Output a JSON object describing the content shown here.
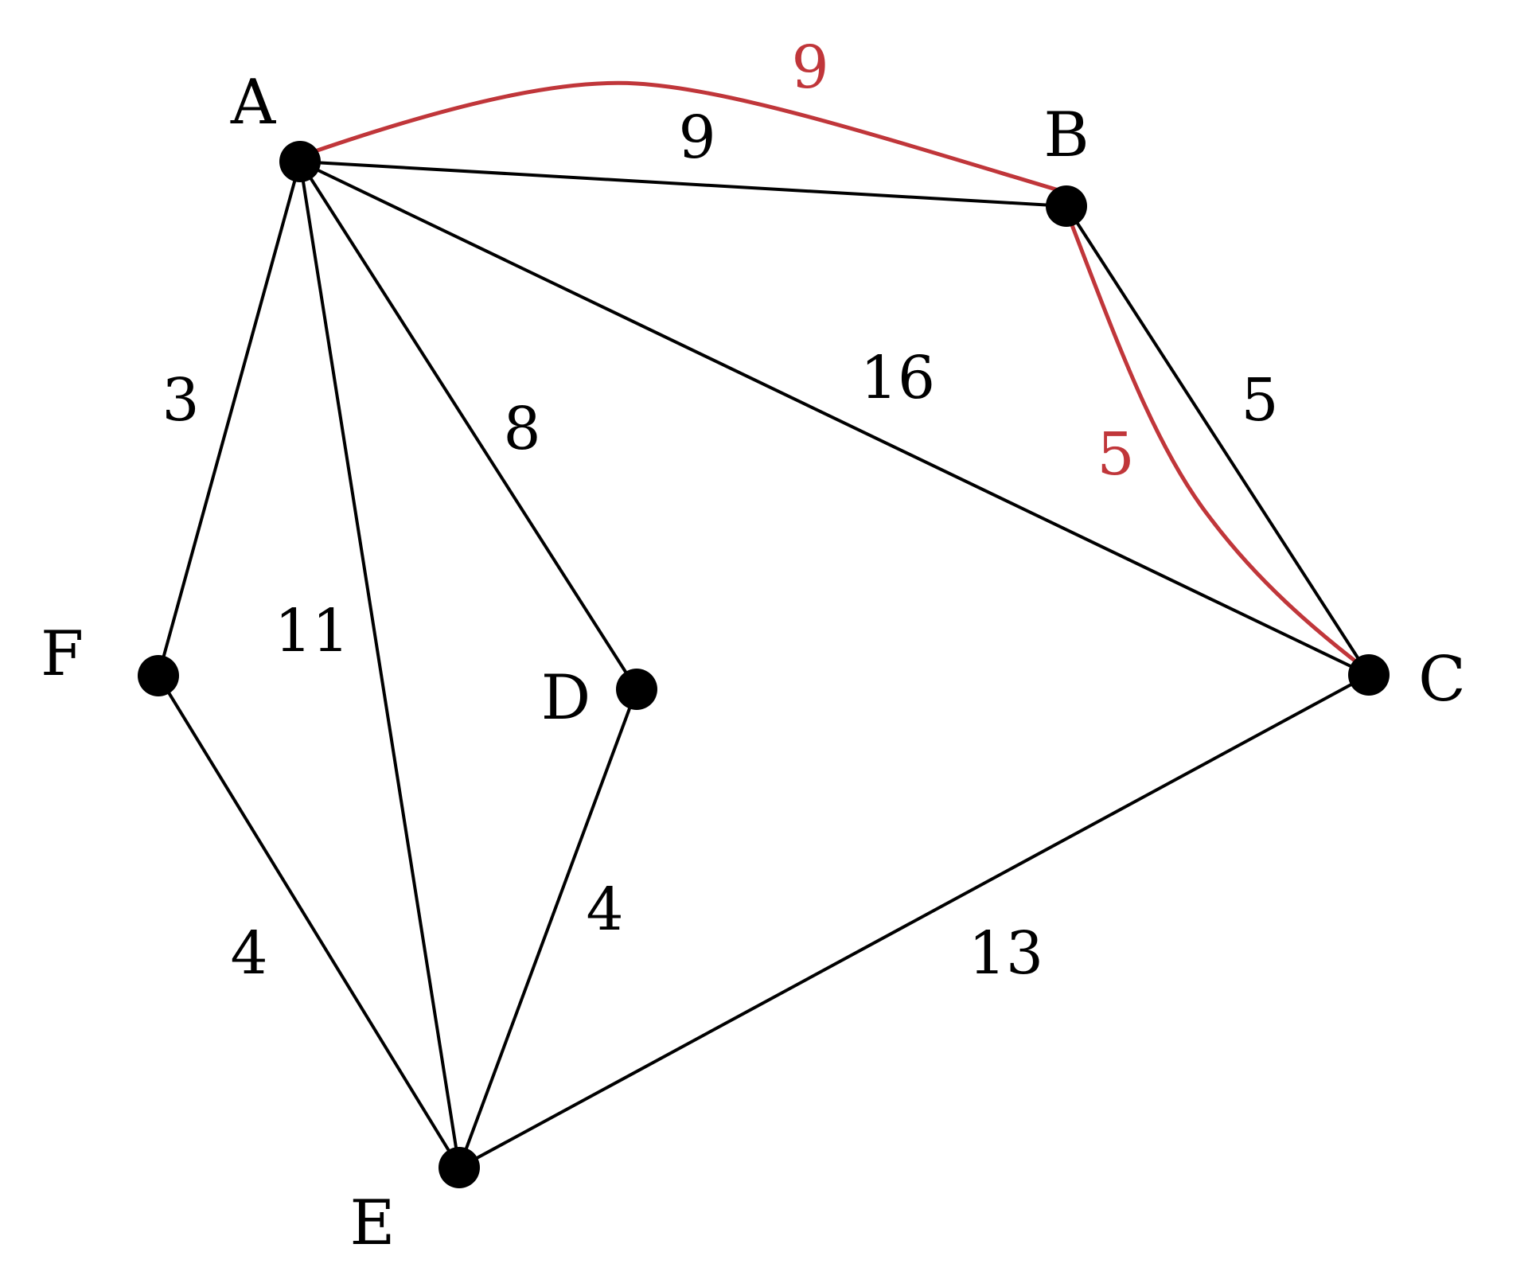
{
  "colors": {
    "edge": "#000000",
    "highlight": "#c0363a",
    "node": "#000000",
    "background": "#ffffff"
  },
  "nodes": {
    "A": {
      "label": "A"
    },
    "B": {
      "label": "B"
    },
    "C": {
      "label": "C"
    },
    "D": {
      "label": "D"
    },
    "E": {
      "label": "E"
    },
    "F": {
      "label": "F"
    }
  },
  "edges": [
    {
      "from": "A",
      "to": "B",
      "weight": "9"
    },
    {
      "from": "A",
      "to": "C",
      "weight": "16"
    },
    {
      "from": "A",
      "to": "F",
      "weight": "3"
    },
    {
      "from": "A",
      "to": "E",
      "weight": "11"
    },
    {
      "from": "A",
      "to": "D",
      "weight": "8"
    },
    {
      "from": "B",
      "to": "C",
      "weight": "5"
    },
    {
      "from": "F",
      "to": "E",
      "weight": "4"
    },
    {
      "from": "D",
      "to": "E",
      "weight": "4"
    },
    {
      "from": "C",
      "to": "E",
      "weight": "13"
    }
  ],
  "highlighted_path": {
    "nodes": [
      "A",
      "B",
      "C"
    ],
    "segments": [
      {
        "from": "A",
        "to": "B",
        "weight": "9"
      },
      {
        "from": "B",
        "to": "C",
        "weight": "5"
      }
    ]
  }
}
